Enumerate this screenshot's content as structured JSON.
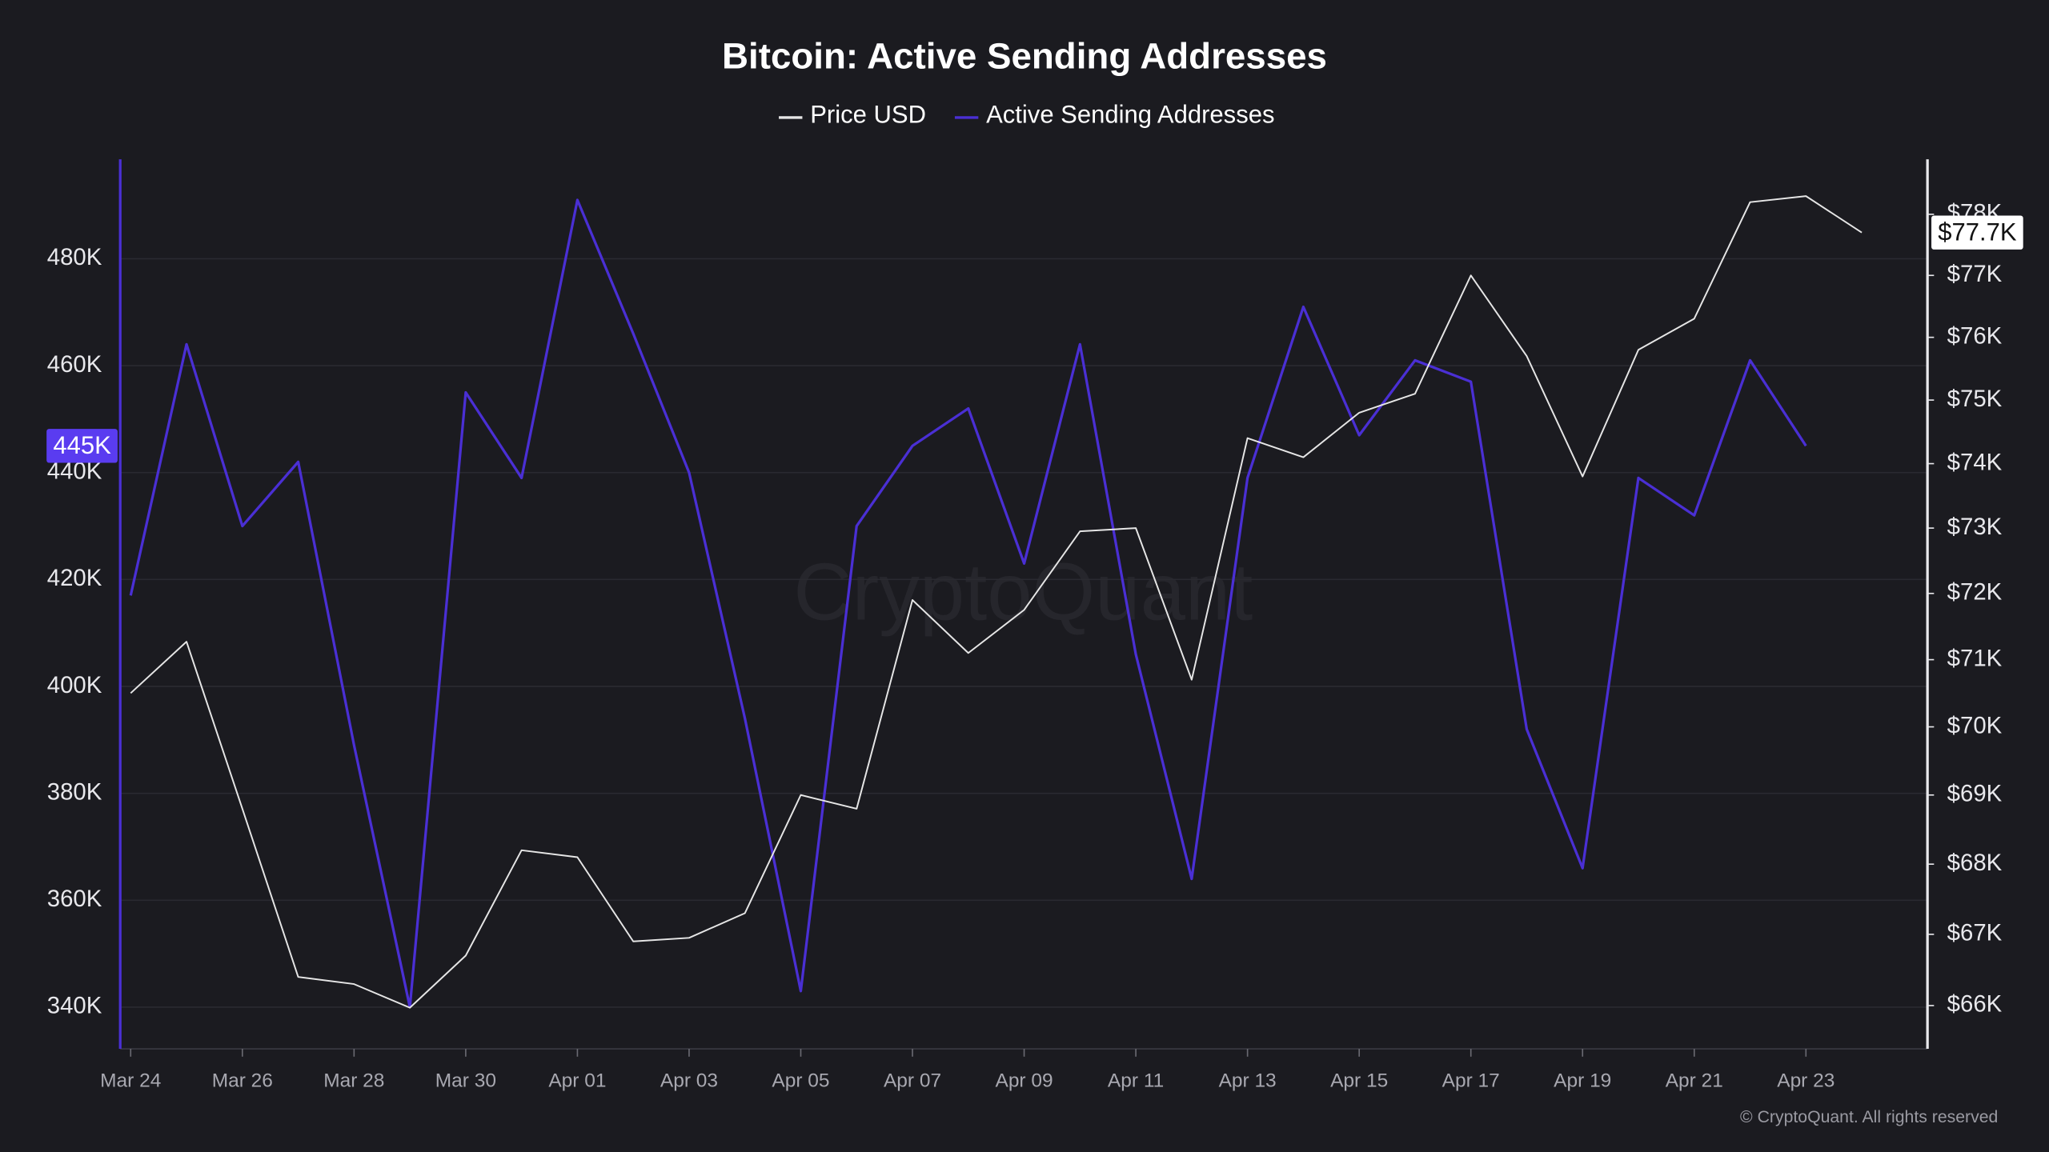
{
  "chart_data": {
    "type": "line",
    "title": "Bitcoin: Active Sending Addresses",
    "watermark": "CryptoQuant",
    "credit": "© CryptoQuant. All rights reserved",
    "categories": [
      "Mar 24",
      null,
      "Mar 26",
      null,
      "Mar 28",
      null,
      "Mar 30",
      null,
      "Apr 01",
      null,
      "Apr 03",
      null,
      "Apr 05",
      null,
      "Apr 07",
      null,
      "Apr 09",
      null,
      "Apr 11",
      null,
      "Apr 13",
      null,
      "Apr 15",
      null,
      "Apr 17",
      null,
      "Apr 19",
      null,
      "Apr 21",
      null,
      "Apr 23",
      null
    ],
    "series": [
      {
        "name": "Price USD",
        "color": "#e6e6e6",
        "axis": "y2",
        "values": [
          70500,
          71270,
          68800,
          66400,
          66300,
          65970,
          66700,
          68200,
          68100,
          66900,
          66950,
          67300,
          69000,
          68800,
          71900,
          71100,
          71750,
          72950,
          73000,
          70700,
          74400,
          74100,
          74800,
          75100,
          77000,
          75700,
          73800,
          75800,
          76300,
          78200,
          78300,
          77700
        ],
        "value_labels": [
          null,
          null,
          null,
          null,
          null,
          null,
          null,
          null,
          null,
          null,
          null,
          null,
          null,
          null,
          null,
          null,
          null,
          null,
          null,
          null,
          null,
          null,
          null,
          null,
          null,
          null,
          null,
          null,
          null,
          null,
          null,
          "$77.7K"
        ]
      },
      {
        "name": "Active Sending Addresses",
        "color": "#4a2fd4",
        "values": [
          417000,
          464000,
          430000,
          442000,
          389000,
          340000,
          455000,
          439000,
          491000,
          466000,
          440000,
          394000,
          343000,
          430000,
          445000,
          452000,
          423000,
          464000,
          406000,
          364000,
          439000,
          471000,
          447000,
          461000,
          457000,
          392000,
          366000,
          439000,
          432000,
          461000,
          445000,
          null
        ],
        "value_labels": [
          null,
          null,
          null,
          null,
          null,
          null,
          null,
          null,
          null,
          null,
          null,
          null,
          null,
          null,
          null,
          null,
          null,
          null,
          null,
          null,
          null,
          null,
          null,
          null,
          null,
          null,
          null,
          null,
          null,
          null,
          "445K",
          null
        ]
      }
    ],
    "ylim": [
      332200,
      498600
    ],
    "yticks": [
      {
        "value": 340000,
        "label": "340K"
      },
      {
        "value": 360000,
        "label": "360K"
      },
      {
        "value": 380000,
        "label": "380K"
      },
      {
        "value": 400000,
        "label": "400K"
      },
      {
        "value": 420000,
        "label": "420K"
      },
      {
        "value": 440000,
        "label": "440K"
      },
      {
        "value": 460000,
        "label": "460K"
      },
      {
        "value": 480000,
        "label": "480K"
      }
    ],
    "y2lim": [
      65400,
      78910
    ],
    "y2_log": true,
    "y2ticks": [
      {
        "value": 66000,
        "label": "$66K"
      },
      {
        "value": 67000,
        "label": "$67K"
      },
      {
        "value": 68000,
        "label": "$68K"
      },
      {
        "value": 69000,
        "label": "$69K"
      },
      {
        "value": 70000,
        "label": "$70K"
      },
      {
        "value": 71000,
        "label": "$71K"
      },
      {
        "value": 72000,
        "label": "$72K"
      },
      {
        "value": 73000,
        "label": "$73K"
      },
      {
        "value": 74000,
        "label": "$74K"
      },
      {
        "value": 75000,
        "label": "$75K"
      },
      {
        "value": 76000,
        "label": "$76K"
      },
      {
        "value": 77000,
        "label": "$77K"
      },
      {
        "value": 78000,
        "label": "$78K"
      }
    ],
    "grid": true
  }
}
